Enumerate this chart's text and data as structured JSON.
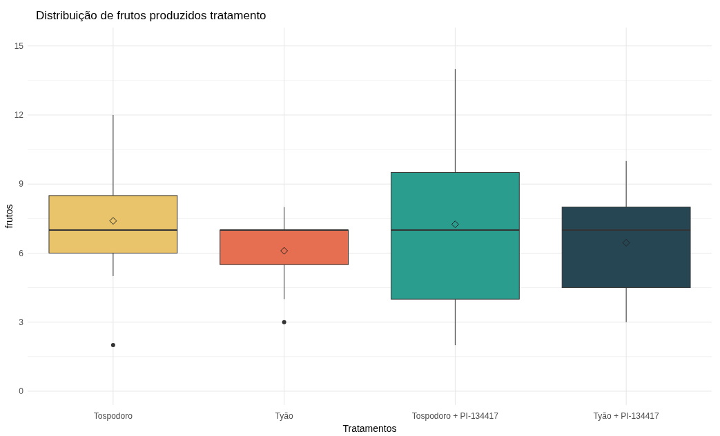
{
  "chart_data": {
    "type": "box",
    "title": "Distribuição de frutos produzidos tratamento",
    "xlabel": "Tratamentos",
    "ylabel": "frutos",
    "categories": [
      "Tospodoro",
      "Tyão",
      "Tospodoro + PI-134417",
      "Tyão + PI-134417"
    ],
    "colors": [
      "#e9c46a",
      "#e76f51",
      "#2a9d8f",
      "#264653"
    ],
    "boxes": [
      {
        "low": 5,
        "q1": 6,
        "median": 7,
        "q3": 8.5,
        "high": 12,
        "mean": 7.4,
        "outliers": [
          2
        ]
      },
      {
        "low": 4,
        "q1": 5.5,
        "median": 7,
        "q3": 7,
        "high": 8,
        "mean": 6.1,
        "outliers": [
          3
        ]
      },
      {
        "low": 2,
        "q1": 4,
        "median": 7,
        "q3": 9.5,
        "high": 14,
        "mean": 7.25
      },
      {
        "low": 3,
        "q1": 4.5,
        "median": 7,
        "q3": 8,
        "high": 10,
        "mean": 6.45
      }
    ],
    "ylim": [
      -0.6,
      15.8
    ],
    "yticks": [
      0,
      3,
      6,
      9,
      12,
      15
    ],
    "grid": true
  }
}
